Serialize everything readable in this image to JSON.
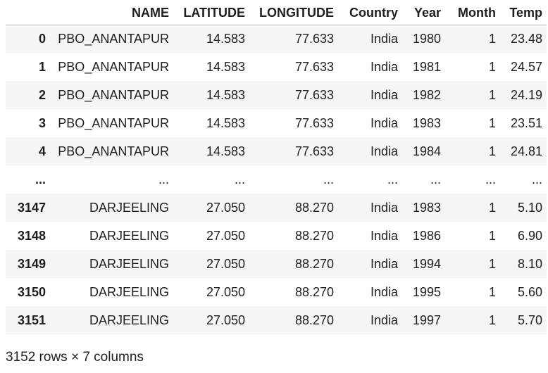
{
  "table": {
    "index_header": "",
    "columns": [
      "NAME",
      "LATITUDE",
      "LONGITUDE",
      "Country",
      "Year",
      "Month",
      "Temp"
    ],
    "rows": [
      {
        "index": "0",
        "cells": [
          "PBO_ANANTAPUR",
          "14.583",
          "77.633",
          "India",
          "1980",
          "1",
          "23.48"
        ]
      },
      {
        "index": "1",
        "cells": [
          "PBO_ANANTAPUR",
          "14.583",
          "77.633",
          "India",
          "1981",
          "1",
          "24.57"
        ]
      },
      {
        "index": "2",
        "cells": [
          "PBO_ANANTAPUR",
          "14.583",
          "77.633",
          "India",
          "1982",
          "1",
          "24.19"
        ]
      },
      {
        "index": "3",
        "cells": [
          "PBO_ANANTAPUR",
          "14.583",
          "77.633",
          "India",
          "1983",
          "1",
          "23.51"
        ]
      },
      {
        "index": "4",
        "cells": [
          "PBO_ANANTAPUR",
          "14.583",
          "77.633",
          "India",
          "1984",
          "1",
          "24.81"
        ]
      },
      {
        "index": "...",
        "cells": [
          "...",
          "...",
          "...",
          "...",
          "...",
          "...",
          "..."
        ]
      },
      {
        "index": "3147",
        "cells": [
          "DARJEELING",
          "27.050",
          "88.270",
          "India",
          "1983",
          "1",
          "5.10"
        ]
      },
      {
        "index": "3148",
        "cells": [
          "DARJEELING",
          "27.050",
          "88.270",
          "India",
          "1986",
          "1",
          "6.90"
        ]
      },
      {
        "index": "3149",
        "cells": [
          "DARJEELING",
          "27.050",
          "88.270",
          "India",
          "1994",
          "1",
          "8.10"
        ]
      },
      {
        "index": "3150",
        "cells": [
          "DARJEELING",
          "27.050",
          "88.270",
          "India",
          "1995",
          "1",
          "5.60"
        ]
      },
      {
        "index": "3151",
        "cells": [
          "DARJEELING",
          "27.050",
          "88.270",
          "India",
          "1997",
          "1",
          "5.70"
        ]
      }
    ]
  },
  "footer": {
    "shape_text": "3152 rows × 7 columns"
  }
}
